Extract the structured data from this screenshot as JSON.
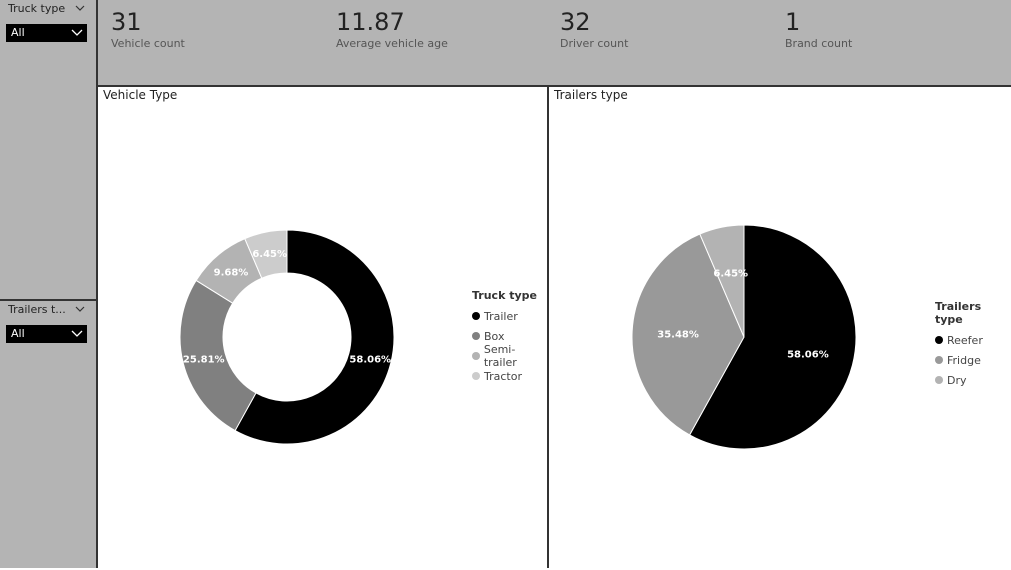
{
  "slicers": [
    {
      "title": "Truck type",
      "value": "All"
    },
    {
      "title": "Trailers t...",
      "value": "All"
    }
  ],
  "kpis": [
    {
      "value": "31",
      "label": "Vehicle count"
    },
    {
      "value": "11.87",
      "label": "Average vehicle age"
    },
    {
      "value": "32",
      "label": "Driver count"
    },
    {
      "value": "1",
      "label": "Brand count"
    }
  ],
  "vehicle_panel": {
    "title": "Vehicle Type"
  },
  "trailers_panel": {
    "title": "Trailers type"
  },
  "chart_data": [
    {
      "type": "pie",
      "variant": "donut",
      "legend_title": "Truck type",
      "legend_placement": "right",
      "categories": [
        "Trailer",
        "Box",
        "Semi-trailer",
        "Tractor"
      ],
      "values": [
        58.06,
        25.81,
        9.68,
        6.45
      ],
      "labels": [
        "58.06%",
        "25.81%",
        "9.68%",
        "6.45%"
      ],
      "colors": [
        "#000000",
        "#808080",
        "#b3b3b3",
        "#cccccc"
      ]
    },
    {
      "type": "pie",
      "legend_title": "Trailers type",
      "legend_placement": "right",
      "categories": [
        "Reefer",
        "Fridge",
        "Dry"
      ],
      "values": [
        58.06,
        35.48,
        6.45
      ],
      "labels": [
        "58.06%",
        "35.48%",
        "6.45%"
      ],
      "colors": [
        "#000000",
        "#999999",
        "#b3b3b3"
      ]
    }
  ]
}
